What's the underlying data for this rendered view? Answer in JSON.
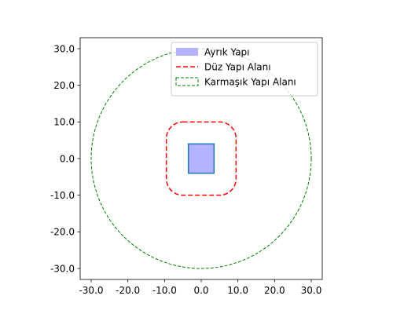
{
  "chart_data": {
    "type": "area",
    "title": "",
    "xlabel": "",
    "ylabel": "",
    "xlim": [
      -33,
      33
    ],
    "ylim": [
      -33,
      33
    ],
    "grid": false,
    "legend_position": "top-right",
    "x_ticks": [
      {
        "value": -30,
        "label": "-30.0"
      },
      {
        "value": -20,
        "label": "-20.0"
      },
      {
        "value": -10,
        "label": "-10.0"
      },
      {
        "value": 0,
        "label": "0.0"
      },
      {
        "value": 10,
        "label": "10.0"
      },
      {
        "value": 20,
        "label": "20.0"
      },
      {
        "value": 30,
        "label": "30.0"
      }
    ],
    "y_ticks": [
      {
        "value": -30,
        "label": "-30.0"
      },
      {
        "value": -20,
        "label": "-20.0"
      },
      {
        "value": -10,
        "label": "-10.0"
      },
      {
        "value": 0,
        "label": "0.0"
      },
      {
        "value": 10,
        "label": "10.0"
      },
      {
        "value": 20,
        "label": "20.0"
      },
      {
        "value": 30,
        "label": "30.0"
      }
    ],
    "series": [
      {
        "name": "Ayrık Yapı",
        "shape": "rectangle",
        "x_range": [
          -3.5,
          3.5
        ],
        "y_range": [
          -4,
          4
        ],
        "fill": "#b3b3ff",
        "edge": "#1f77b4",
        "legend_style": "filled-patch"
      },
      {
        "name": "Düz Yapı Alanı",
        "shape": "rounded-rectangle",
        "x_range": [
          -9.5,
          9.5
        ],
        "y_range": [
          -10,
          10
        ],
        "corner_radius": 4.5,
        "edge": "#ff0000",
        "line_style": "dashed",
        "legend_style": "line"
      },
      {
        "name": "Karmaşık Yapı Alanı",
        "shape": "circle",
        "center": [
          0,
          0
        ],
        "radius": 30,
        "edge": "#008000",
        "line_style": "dashed",
        "legend_style": "hollow-patch"
      }
    ]
  }
}
